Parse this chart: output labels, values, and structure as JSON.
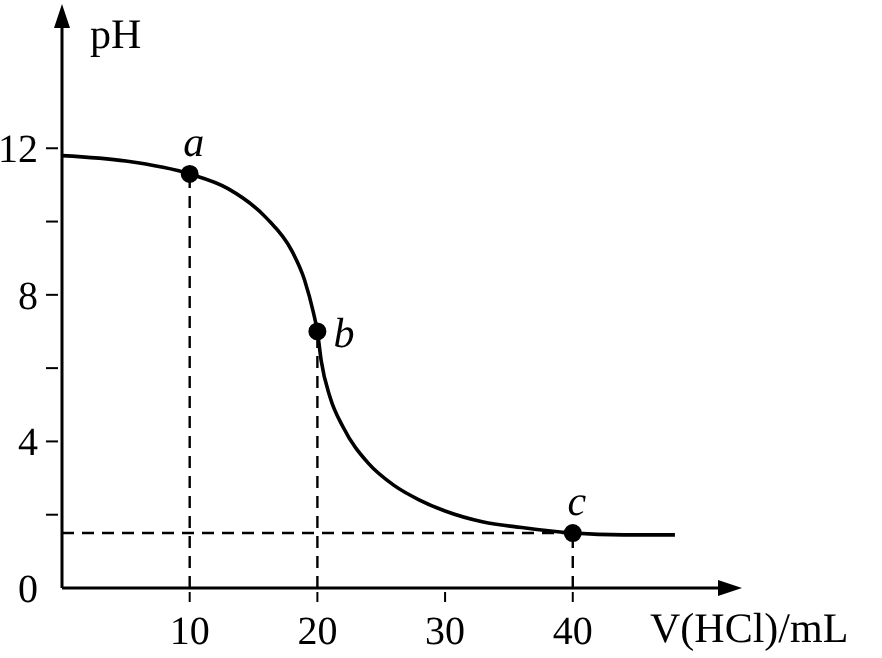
{
  "chart_data": {
    "type": "line",
    "xlabel": "V(HCl)/mL",
    "ylabel": "pH",
    "x": [
      0,
      5,
      10,
      13,
      16,
      18,
      19,
      19.7,
      20,
      20.3,
      21,
      22,
      24,
      26,
      28,
      30,
      33,
      36,
      40,
      44,
      48
    ],
    "series": [
      {
        "color": "#000000",
        "values": [
          11.8,
          11.65,
          11.3,
          10.9,
          10.1,
          9.2,
          8.4,
          7.5,
          7,
          6.2,
          5.2,
          4.4,
          3.4,
          2.8,
          2.4,
          2.1,
          1.8,
          1.65,
          1.5,
          1.45,
          1.45
        ]
      }
    ],
    "xlim": [
      0,
      52
    ],
    "ylim": [
      0,
      15.5
    ],
    "xticks": [
      10,
      20,
      30,
      40
    ],
    "yticks": [
      0,
      {
        "value": 2,
        "label": null
      },
      4,
      {
        "value": 6,
        "label": null
      },
      8,
      {
        "value": 10,
        "label": null
      },
      12
    ],
    "annotations": [
      {
        "text": "a",
        "x": 10,
        "y": 11.3
      },
      {
        "text": "b",
        "x": 20,
        "y": 7
      },
      {
        "text": "c",
        "x": 40,
        "y": 1.5
      }
    ],
    "ref_lines": [
      {
        "axis": "x",
        "value": 10,
        "line_style": "dashed"
      },
      {
        "axis": "x",
        "value": 20,
        "line_style": "dashed"
      },
      {
        "axis": "x",
        "value": 40,
        "line_style": "dashed"
      },
      {
        "axis": "y",
        "value": 1.5,
        "line_style": "dashed"
      }
    ],
    "grid": false,
    "legend": false,
    "marker": "none",
    "line_style": "solid"
  }
}
